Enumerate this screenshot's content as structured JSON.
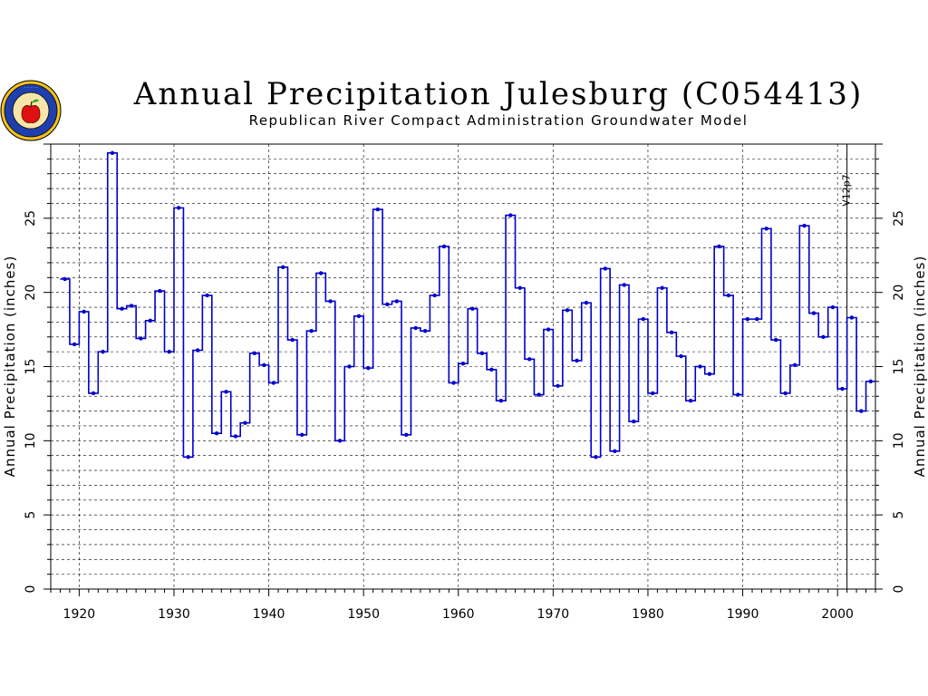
{
  "chart_data": {
    "type": "line",
    "style": "step",
    "title": "Annual Precipitation Julesburg (C054413)",
    "subtitle": "Republican River Compact Administration Groundwater Model",
    "ylabel": "Annual Precipitation (inches)",
    "xlabel": "",
    "xlim": [
      1917,
      2004
    ],
    "ylim": [
      0,
      30
    ],
    "x_ticks": [
      1920,
      1930,
      1940,
      1950,
      1960,
      1970,
      1980,
      1990,
      2000
    ],
    "y_ticks": [
      0,
      5,
      10,
      15,
      20,
      25
    ],
    "grid": true,
    "series_color": "#0000cc",
    "version_line": {
      "x": 2001,
      "label": "V12p7"
    },
    "x": [
      1918,
      1919,
      1920,
      1921,
      1922,
      1923,
      1924,
      1925,
      1926,
      1927,
      1928,
      1929,
      1930,
      1931,
      1932,
      1933,
      1934,
      1935,
      1936,
      1937,
      1938,
      1939,
      1940,
      1941,
      1942,
      1943,
      1944,
      1945,
      1946,
      1947,
      1948,
      1949,
      1950,
      1951,
      1952,
      1953,
      1954,
      1955,
      1956,
      1957,
      1958,
      1959,
      1960,
      1961,
      1962,
      1963,
      1964,
      1965,
      1966,
      1967,
      1968,
      1969,
      1970,
      1971,
      1972,
      1973,
      1974,
      1975,
      1976,
      1977,
      1978,
      1979,
      1980,
      1981,
      1982,
      1983,
      1984,
      1985,
      1986,
      1987,
      1988,
      1989,
      1990,
      1991,
      1992,
      1993,
      1994,
      1995,
      1996,
      1997,
      1998,
      1999,
      2000,
      2001,
      2002,
      2003
    ],
    "values": [
      20.9,
      16.5,
      18.7,
      13.2,
      16.0,
      29.4,
      18.9,
      19.1,
      16.9,
      18.1,
      20.1,
      16.0,
      25.7,
      8.9,
      16.1,
      19.8,
      10.5,
      13.3,
      10.3,
      11.2,
      15.9,
      15.1,
      13.9,
      21.7,
      16.8,
      10.4,
      17.4,
      21.3,
      19.4,
      10.0,
      15.0,
      18.4,
      14.9,
      25.6,
      19.2,
      19.4,
      10.4,
      17.6,
      17.4,
      19.8,
      23.1,
      13.9,
      15.2,
      18.9,
      15.9,
      14.8,
      12.7,
      25.2,
      20.3,
      15.5,
      13.1,
      17.5,
      13.7,
      18.8,
      15.4,
      19.3,
      8.9,
      21.6,
      9.3,
      20.5,
      11.3,
      18.2,
      13.2,
      20.3,
      17.3,
      15.7,
      12.7,
      15.0,
      14.5,
      23.1,
      19.8,
      13.1,
      18.2,
      18.2,
      24.3,
      16.8,
      13.2,
      15.1,
      24.5,
      18.6,
      17.0,
      19.0,
      13.5,
      18.3,
      12.0,
      14.0
    ]
  },
  "logo": {
    "name": "seal-logo"
  }
}
